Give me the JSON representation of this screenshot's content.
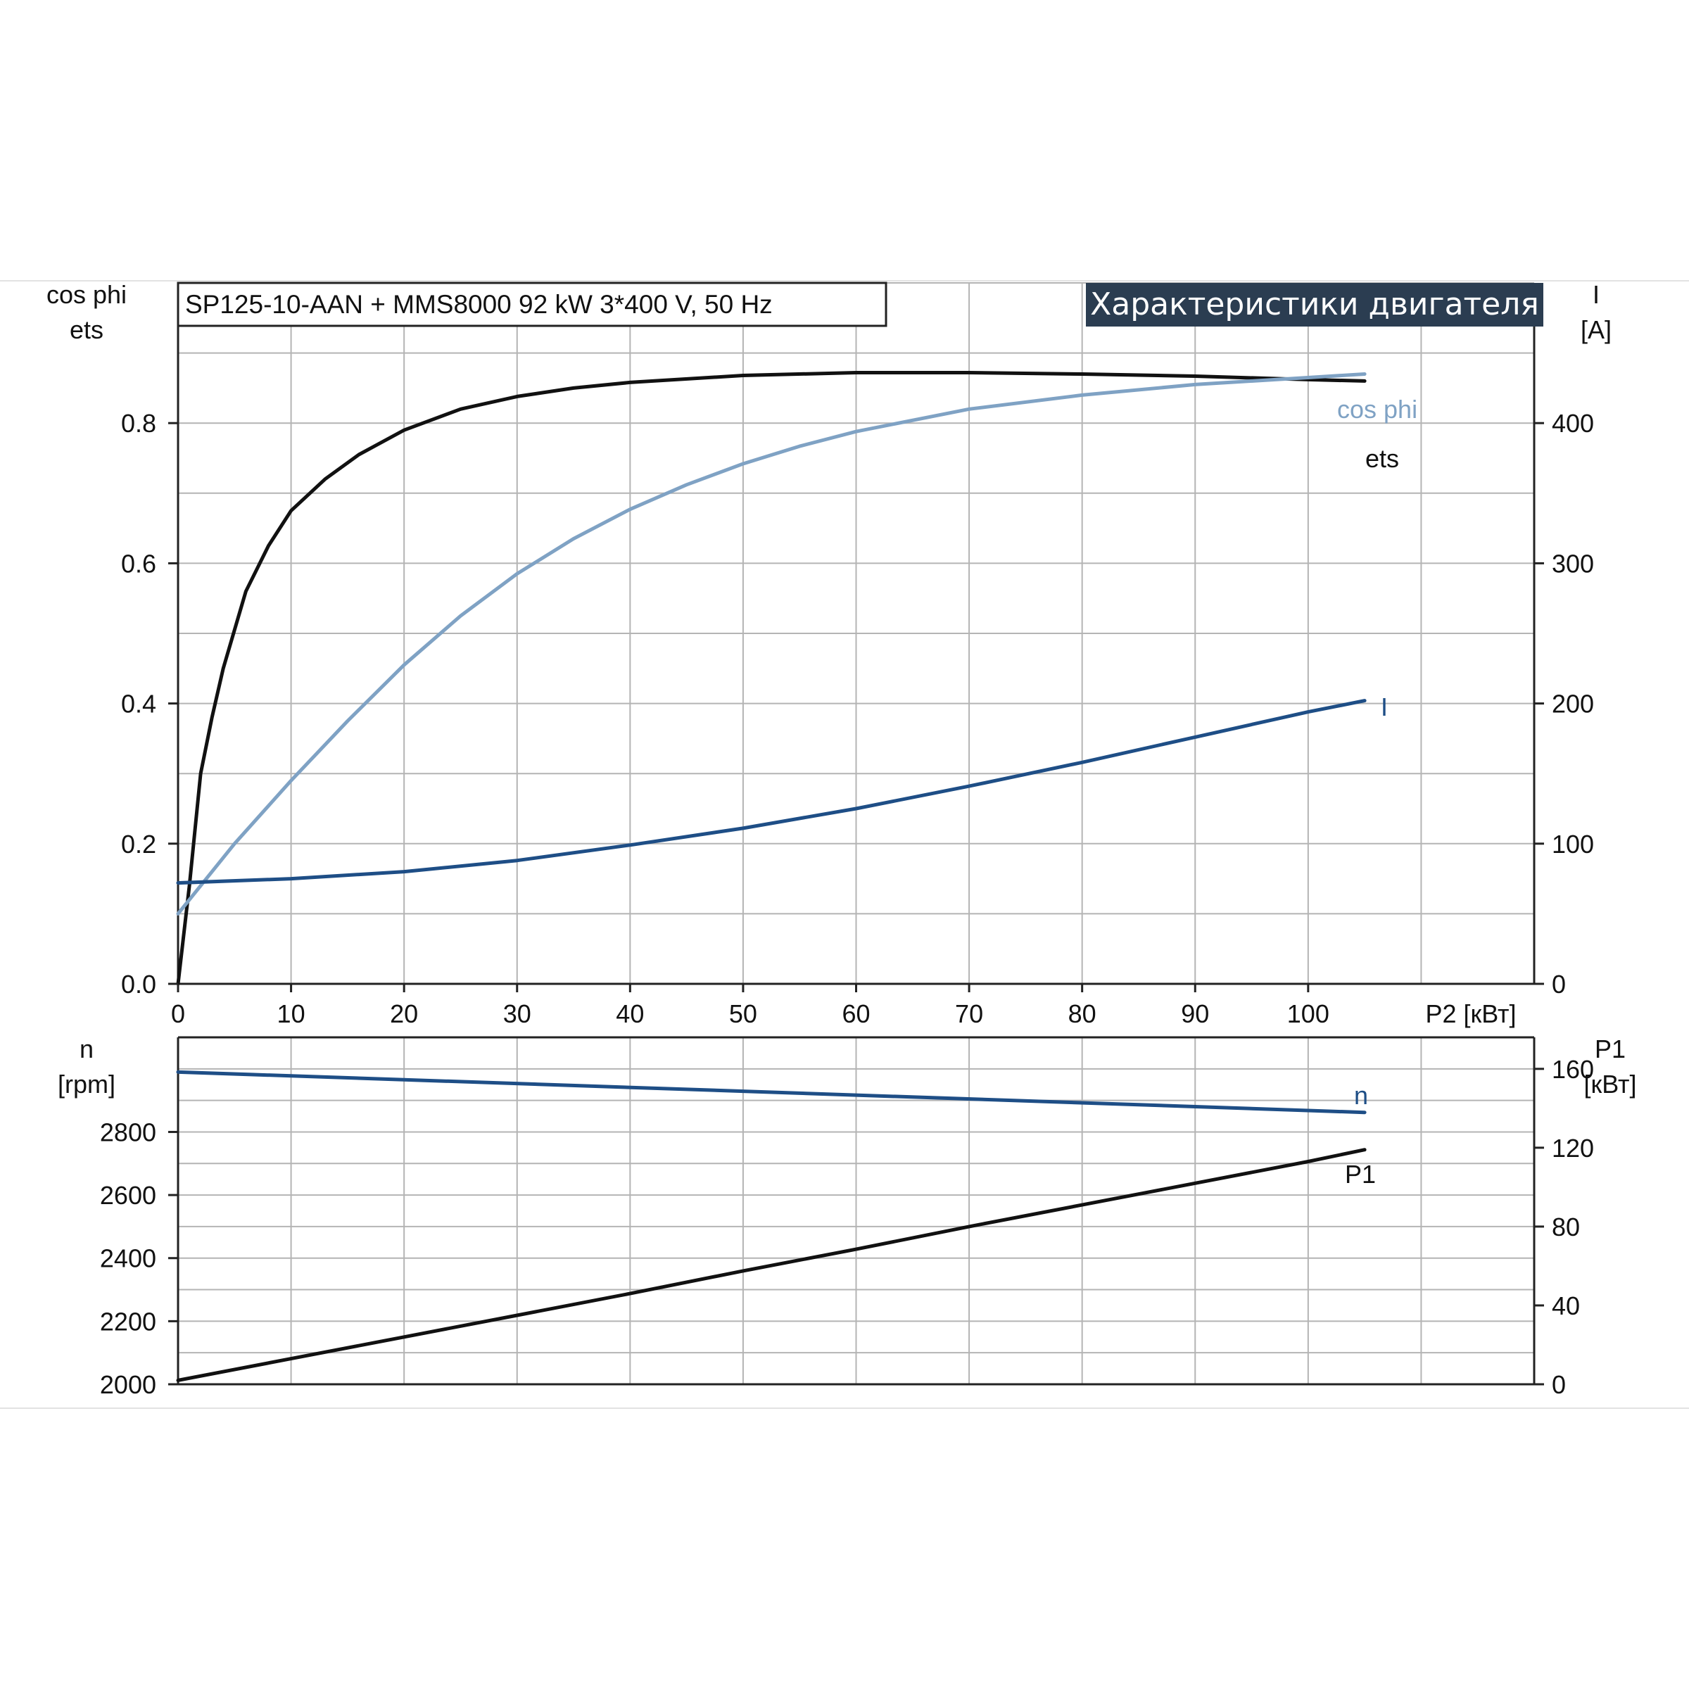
{
  "header": {
    "model": "SP125-10-AAN + MMS8000   92 kW   3*400 V, 50 Hz",
    "banner": "Характеристики двигателя"
  },
  "colors": {
    "ets": "#111111",
    "cos_phi": "#7fa2c4",
    "I": "#1e4e86",
    "n": "#1e4e86",
    "P1": "#111111",
    "banner_bg": "#2b3d51",
    "grid": "#b4b4b4"
  },
  "chart_data": [
    {
      "type": "line",
      "panel": "top",
      "xlabel": "P2 [кВт]",
      "xlim": [
        0,
        120
      ],
      "x_ticks": [
        "0",
        "10",
        "20",
        "30",
        "40",
        "50",
        "60",
        "70",
        "80",
        "90",
        "100"
      ],
      "left_axis": {
        "label": [
          "cos phi",
          "ets"
        ],
        "ylim": [
          0,
          1
        ],
        "ticks": [
          "0.0",
          "0.2",
          "0.4",
          "0.6",
          "0.8"
        ]
      },
      "right_axis": {
        "label": [
          "I",
          "[A]"
        ],
        "ylim": [
          0,
          500
        ],
        "ticks": [
          "0",
          "100",
          "200",
          "300",
          "400"
        ]
      },
      "grid": true,
      "series": [
        {
          "name": "ets",
          "axis": "left",
          "x": [
            0,
            1,
            2,
            3,
            4,
            6,
            8,
            10,
            13,
            16,
            20,
            25,
            30,
            35,
            40,
            50,
            60,
            70,
            80,
            90,
            100,
            105
          ],
          "values": [
            0.0,
            0.14,
            0.3,
            0.38,
            0.45,
            0.56,
            0.625,
            0.675,
            0.72,
            0.755,
            0.79,
            0.82,
            0.838,
            0.85,
            0.858,
            0.868,
            0.872,
            0.872,
            0.87,
            0.867,
            0.862,
            0.86
          ]
        },
        {
          "name": "cos phi",
          "axis": "left",
          "x": [
            0,
            5,
            10,
            15,
            20,
            25,
            30,
            35,
            40,
            45,
            50,
            55,
            60,
            70,
            80,
            90,
            100,
            105
          ],
          "values": [
            0.1,
            0.2,
            0.29,
            0.375,
            0.455,
            0.525,
            0.585,
            0.635,
            0.677,
            0.712,
            0.742,
            0.767,
            0.788,
            0.82,
            0.84,
            0.855,
            0.865,
            0.87
          ]
        },
        {
          "name": "I",
          "axis": "right",
          "x": [
            0,
            10,
            20,
            30,
            40,
            50,
            60,
            70,
            80,
            90,
            100,
            105
          ],
          "values": [
            72,
            75,
            80,
            88,
            99,
            111,
            125,
            141,
            158,
            176,
            194,
            202
          ]
        }
      ]
    },
    {
      "type": "line",
      "panel": "bottom",
      "xlim": [
        0,
        120
      ],
      "left_axis": {
        "label": [
          "n",
          "[rpm]"
        ],
        "ylim": [
          2000,
          3100
        ],
        "ticks": [
          "2000",
          "2200",
          "2400",
          "2600",
          "2800"
        ]
      },
      "right_axis": {
        "label": [
          "P1",
          "[кВт]"
        ],
        "ylim": [
          0,
          176
        ],
        "ticks": [
          "0",
          "40",
          "80",
          "120",
          "160"
        ]
      },
      "grid": true,
      "series": [
        {
          "name": "n",
          "axis": "left",
          "x": [
            0,
            105
          ],
          "values": [
            2990,
            2862
          ]
        },
        {
          "name": "P1",
          "axis": "right",
          "x": [
            0,
            10,
            20,
            30,
            40,
            50,
            60,
            70,
            80,
            90,
            100,
            105
          ],
          "values": [
            2,
            13,
            24,
            35,
            46,
            57.5,
            68.5,
            80,
            91,
            102,
            113,
            119
          ]
        }
      ]
    }
  ]
}
